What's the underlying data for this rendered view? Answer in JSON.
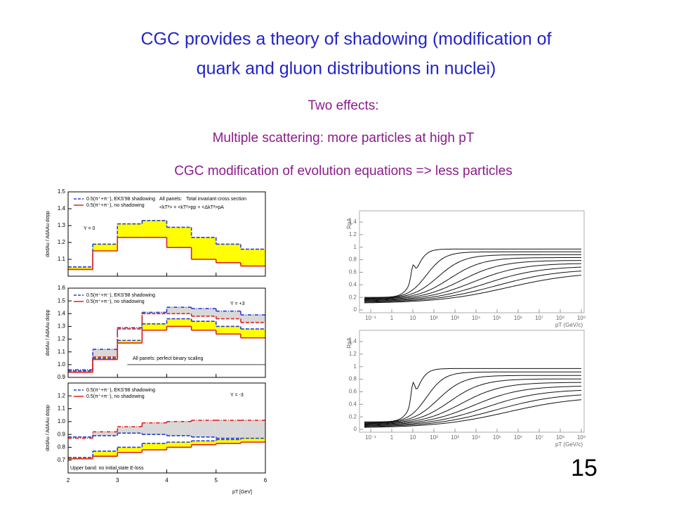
{
  "slide": {
    "title_lines": [
      "CGC provides a theory of shadowing (modification of",
      "quark and gluon distributions in nuclei)"
    ],
    "lines": [
      "Two effects:",
      "Multiple scattering:  more particles at high pT",
      "CGC modification of evolution equations => less particles"
    ],
    "page_number": "15"
  },
  "left_figure": {
    "x_label": "pT [GeV]",
    "y_label": "dσdAu / AdAAu dσpp",
    "xlim": [
      2,
      6
    ],
    "xticks": [
      2,
      3,
      4,
      5,
      6
    ],
    "bin_edges": [
      2,
      2.5,
      3,
      3.5,
      4,
      4.5,
      5,
      5.5,
      6
    ],
    "panels": [
      {
        "label": "Y = 0",
        "legend": [
          "0.5(π⁺+π⁻), EKS'98 shadowing",
          "0.5(π⁺+π⁻), no shadowing"
        ],
        "notes": [
          "All panels:",
          "Total invariant cross section",
          "<kT²> = <kT²>pp + <ΔkT²>pA"
        ],
        "ylim": [
          1.0,
          1.5
        ],
        "yticks": [
          1.1,
          1.2,
          1.3,
          1.4,
          1.5
        ],
        "yellow_band": {
          "top": [
            1.055,
            1.19,
            1.31,
            1.33,
            1.29,
            1.23,
            1.19,
            1.16
          ],
          "bottom": [
            1.04,
            1.15,
            1.23,
            1.23,
            1.17,
            1.1,
            1.08,
            1.06
          ]
        }
      },
      {
        "label": "Y = +3",
        "legend": [
          "0.5(π⁺+π⁻), EKS'98 shadowing",
          "0.5(π⁺+π⁻), no shadowing"
        ],
        "notes": [
          "All panels:   perfect binary scaling"
        ],
        "ylim": [
          0.9,
          1.6
        ],
        "yticks": [
          0.9,
          {
            "value": 1.0,
            "label": "1.0"
          },
          1.1,
          1.2,
          1.3,
          1.4,
          1.5,
          1.6
        ],
        "reference_line": 1.0,
        "gray_band": {
          "top": [
            0.96,
            1.12,
            1.29,
            1.41,
            1.45,
            1.44,
            1.42,
            1.39
          ],
          "bottom": [
            0.95,
            1.06,
            1.28,
            1.4,
            1.4,
            1.38,
            1.36,
            1.33
          ],
          "top_color": "#2a3fd0",
          "bottom_color": "#e02020"
        },
        "yellow_band": {
          "top": [
            0.95,
            1.05,
            1.19,
            1.32,
            1.36,
            1.34,
            1.3,
            1.28
          ],
          "bottom": [
            0.94,
            1.04,
            1.17,
            1.27,
            1.3,
            1.27,
            1.24,
            1.21
          ]
        }
      },
      {
        "label": "Y = -3",
        "legend": [
          "0.5(π⁺+π⁻), EKS'98 shadowing",
          "0.5(π⁺+π⁻), no shadowing"
        ],
        "notes": [
          "Upper band: no initial state E-loss"
        ],
        "ylim": [
          0.6,
          1.3
        ],
        "yticks": [
          0.7,
          0.8,
          0.9,
          {
            "value": 1.0,
            "label": "1.0"
          },
          1.1,
          1.2
        ],
        "gray_band": {
          "top": [
            0.87,
            0.92,
            0.96,
            0.99,
            1.0,
            1.01,
            1.01,
            1.01
          ],
          "bottom": [
            0.88,
            0.89,
            0.91,
            0.9,
            0.89,
            0.88,
            0.87,
            0.86
          ],
          "top_color": "#e02020",
          "bottom_color": "#2a3fd0"
        },
        "yellow_band": {
          "top": [
            0.72,
            0.77,
            0.8,
            0.83,
            0.84,
            0.85,
            0.86,
            0.87
          ],
          "bottom": [
            0.71,
            0.73,
            0.76,
            0.78,
            0.8,
            0.82,
            0.83,
            0.84
          ]
        }
      }
    ]
  },
  "right_figure": {
    "y_label": "RpA",
    "x_label": "pT (GeV/c)",
    "ylim": [
      0,
      1.4
    ],
    "yticks": [
      0,
      0.2,
      0.4,
      0.6,
      0.8,
      1,
      1.2,
      1.4
    ],
    "xticks": [
      {
        "value": 0.1,
        "label": "10⁻¹"
      },
      1,
      10,
      {
        "value": 100,
        "label": "10²"
      },
      {
        "value": 1000,
        "label": "10³"
      },
      {
        "value": 10000,
        "label": "10⁴"
      },
      {
        "value": 100000,
        "label": "10⁵"
      },
      {
        "value": 1000000,
        "label": "10⁶"
      },
      {
        "value": 10000000,
        "label": "10⁷"
      },
      {
        "value": 100000000,
        "label": "10⁸"
      },
      {
        "value": 1000000000,
        "label": "10⁹"
      }
    ]
  }
}
